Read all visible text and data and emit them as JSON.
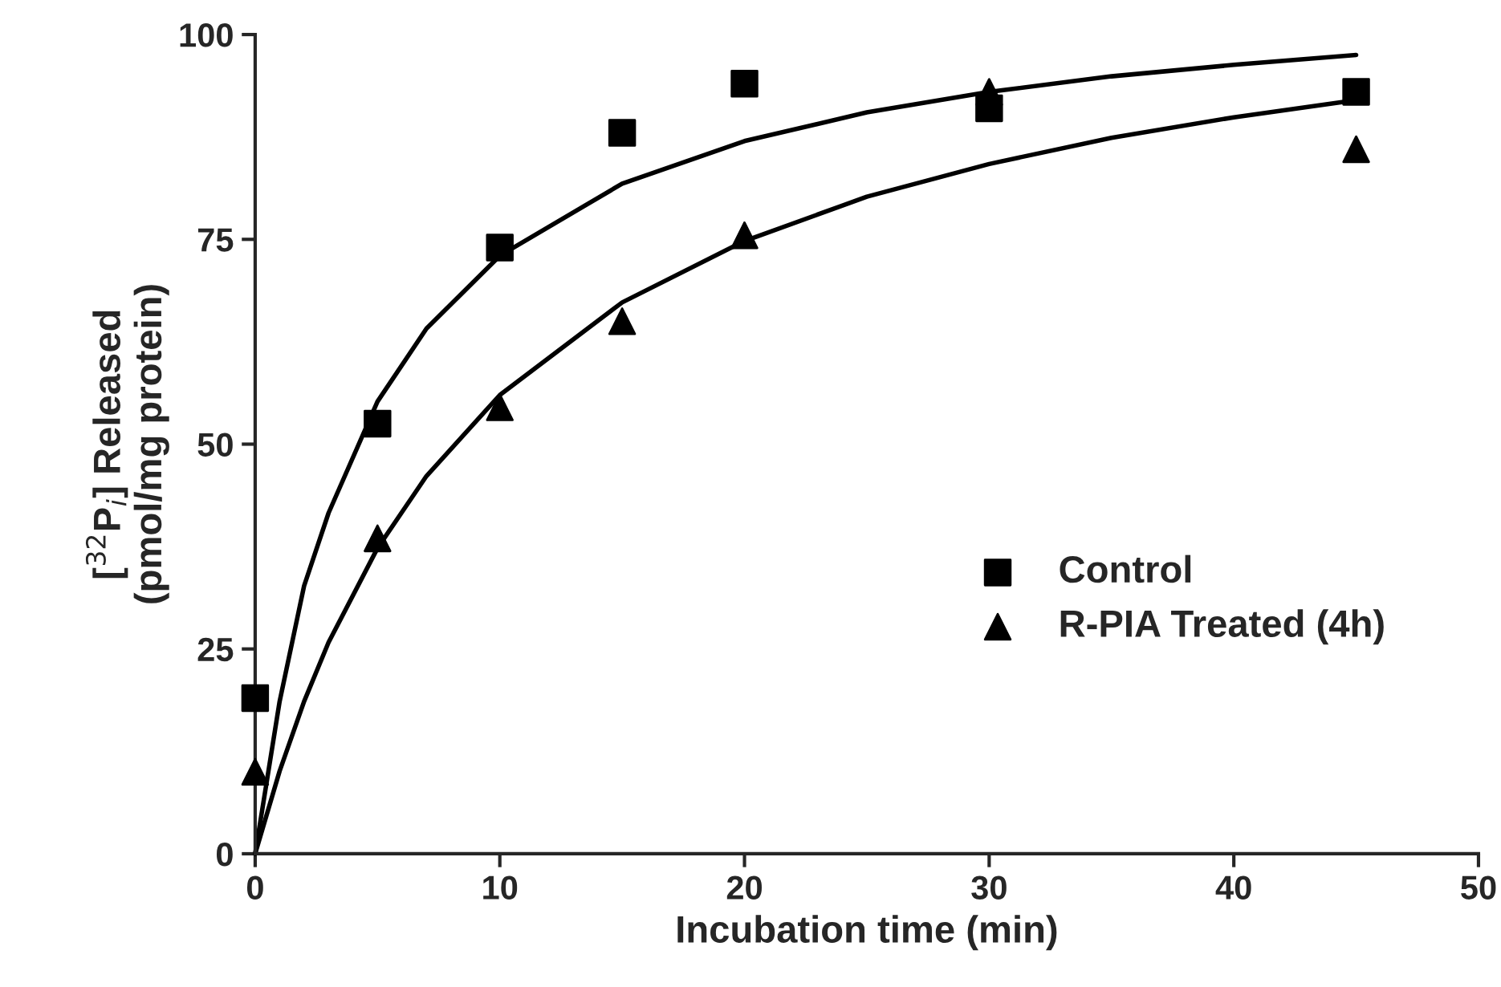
{
  "chart_data": {
    "type": "scatter",
    "xlabel": "Incubation time (min)",
    "ylabel": "[$^{32}$P$_{i}$] Released\n(pmol/mg protein)",
    "xlim": [
      0,
      50
    ],
    "ylim": [
      0,
      100
    ],
    "xticks": [
      0,
      10,
      20,
      30,
      40,
      50
    ],
    "yticks": [
      0,
      25,
      50,
      75,
      100
    ],
    "grid": false,
    "legend": "center",
    "series": [
      {
        "name": "Control",
        "marker": "square",
        "color": "#000000",
        "x": [
          0,
          5,
          10,
          15,
          20,
          30,
          45
        ],
        "values": [
          19,
          52.5,
          74,
          88,
          94,
          91,
          93
        ]
      },
      {
        "name": "R-PIA Treated (4h)",
        "marker": "triangle",
        "color": "#000000",
        "x": [
          0,
          5,
          10,
          15,
          20,
          30,
          45
        ],
        "values": [
          10,
          38.5,
          54.5,
          65,
          75.5,
          93,
          86
        ]
      },
      {
        "type": "line",
        "color": "#000000",
        "x": [
          0,
          1,
          2,
          3,
          5,
          7,
          10,
          15,
          20,
          25,
          30,
          35,
          40,
          45
        ],
        "values": [
          0,
          18.6,
          32.7,
          41.6,
          55.2,
          64.1,
          73,
          81.8,
          87,
          90.5,
          93,
          94.9,
          96.3,
          97.5
        ]
      },
      {
        "type": "line",
        "color": "#000000",
        "x": [
          0,
          1,
          2,
          3,
          5,
          7,
          10,
          15,
          20,
          25,
          30,
          35,
          40,
          45
        ],
        "values": [
          0,
          10.1,
          18.6,
          25.8,
          37.3,
          46.1,
          56,
          67.3,
          74.8,
          80.2,
          84.2,
          87.4,
          89.9,
          92
        ]
      }
    ]
  }
}
